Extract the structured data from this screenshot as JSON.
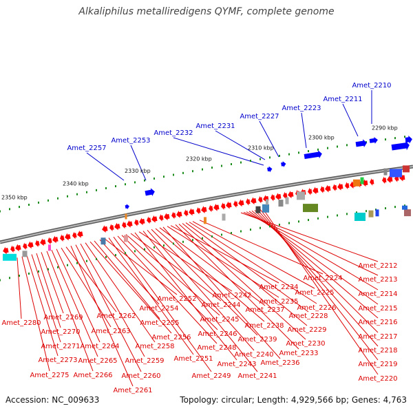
{
  "title": "Alkaliphilus metalliredigens QYMF, complete genome",
  "footer": {
    "accession": "Accession: NC_009633",
    "summary": "Topology: circular; Length: 4,929,566 bp; Genes: 4,763"
  },
  "colors": {
    "forward": "#0000ff",
    "reverse": "#ff0000",
    "label_forward": "#0000cc",
    "label_reverse": "#dd0000",
    "backbone": "#808080"
  },
  "scale_labels": [
    "2290 kbp",
    "2300 kbp",
    "2310 kbp",
    "2320 kbp",
    "2330 kbp",
    "2340 kbp",
    "2350 kbp"
  ],
  "forward_labels": [
    "Amet_2210",
    "Amet_2211",
    "Amet_2223",
    "Amet_2227",
    "Amet_2231",
    "Amet_2232",
    "Amet_2253",
    "Amet_2257"
  ],
  "reverse_labels": [
    "Amet_2212",
    "Amet_2213",
    "Amet_2214",
    "Amet_2215",
    "Amet_2216",
    "Amet_2217",
    "Amet_2218",
    "Amet_2219",
    "Amet_2220",
    "Amet_2224",
    "Amet_2225",
    "Amet_2226",
    "Amet_2228",
    "Amet_2229",
    "Amet_2230",
    "Amet_2233",
    "Amet_2234",
    "Amet_2235",
    "Amet_2236",
    "Amet_2237",
    "Amet_2238",
    "Amet_2239",
    "Amet_2240",
    "Amet_2241",
    "Amet_2242",
    "Amet_2243",
    "Amet_2244",
    "Amet_2245",
    "Amet_2246",
    "Amet_2248",
    "Amet_2249",
    "Amet_2251",
    "Amet_2252",
    "Amet_2254",
    "Amet_2255",
    "Amet_2256",
    "Amet_2258",
    "Amet_2259",
    "Amet_2260",
    "Amet_2261",
    "Amet_2262",
    "Amet_2263",
    "Amet_2264",
    "Amet_2265",
    "Amet_2266",
    "Amet_2269",
    "Amet_2270",
    "Amet_2271",
    "Amet_2273",
    "Amet_2275",
    "Amet_2280"
  ]
}
